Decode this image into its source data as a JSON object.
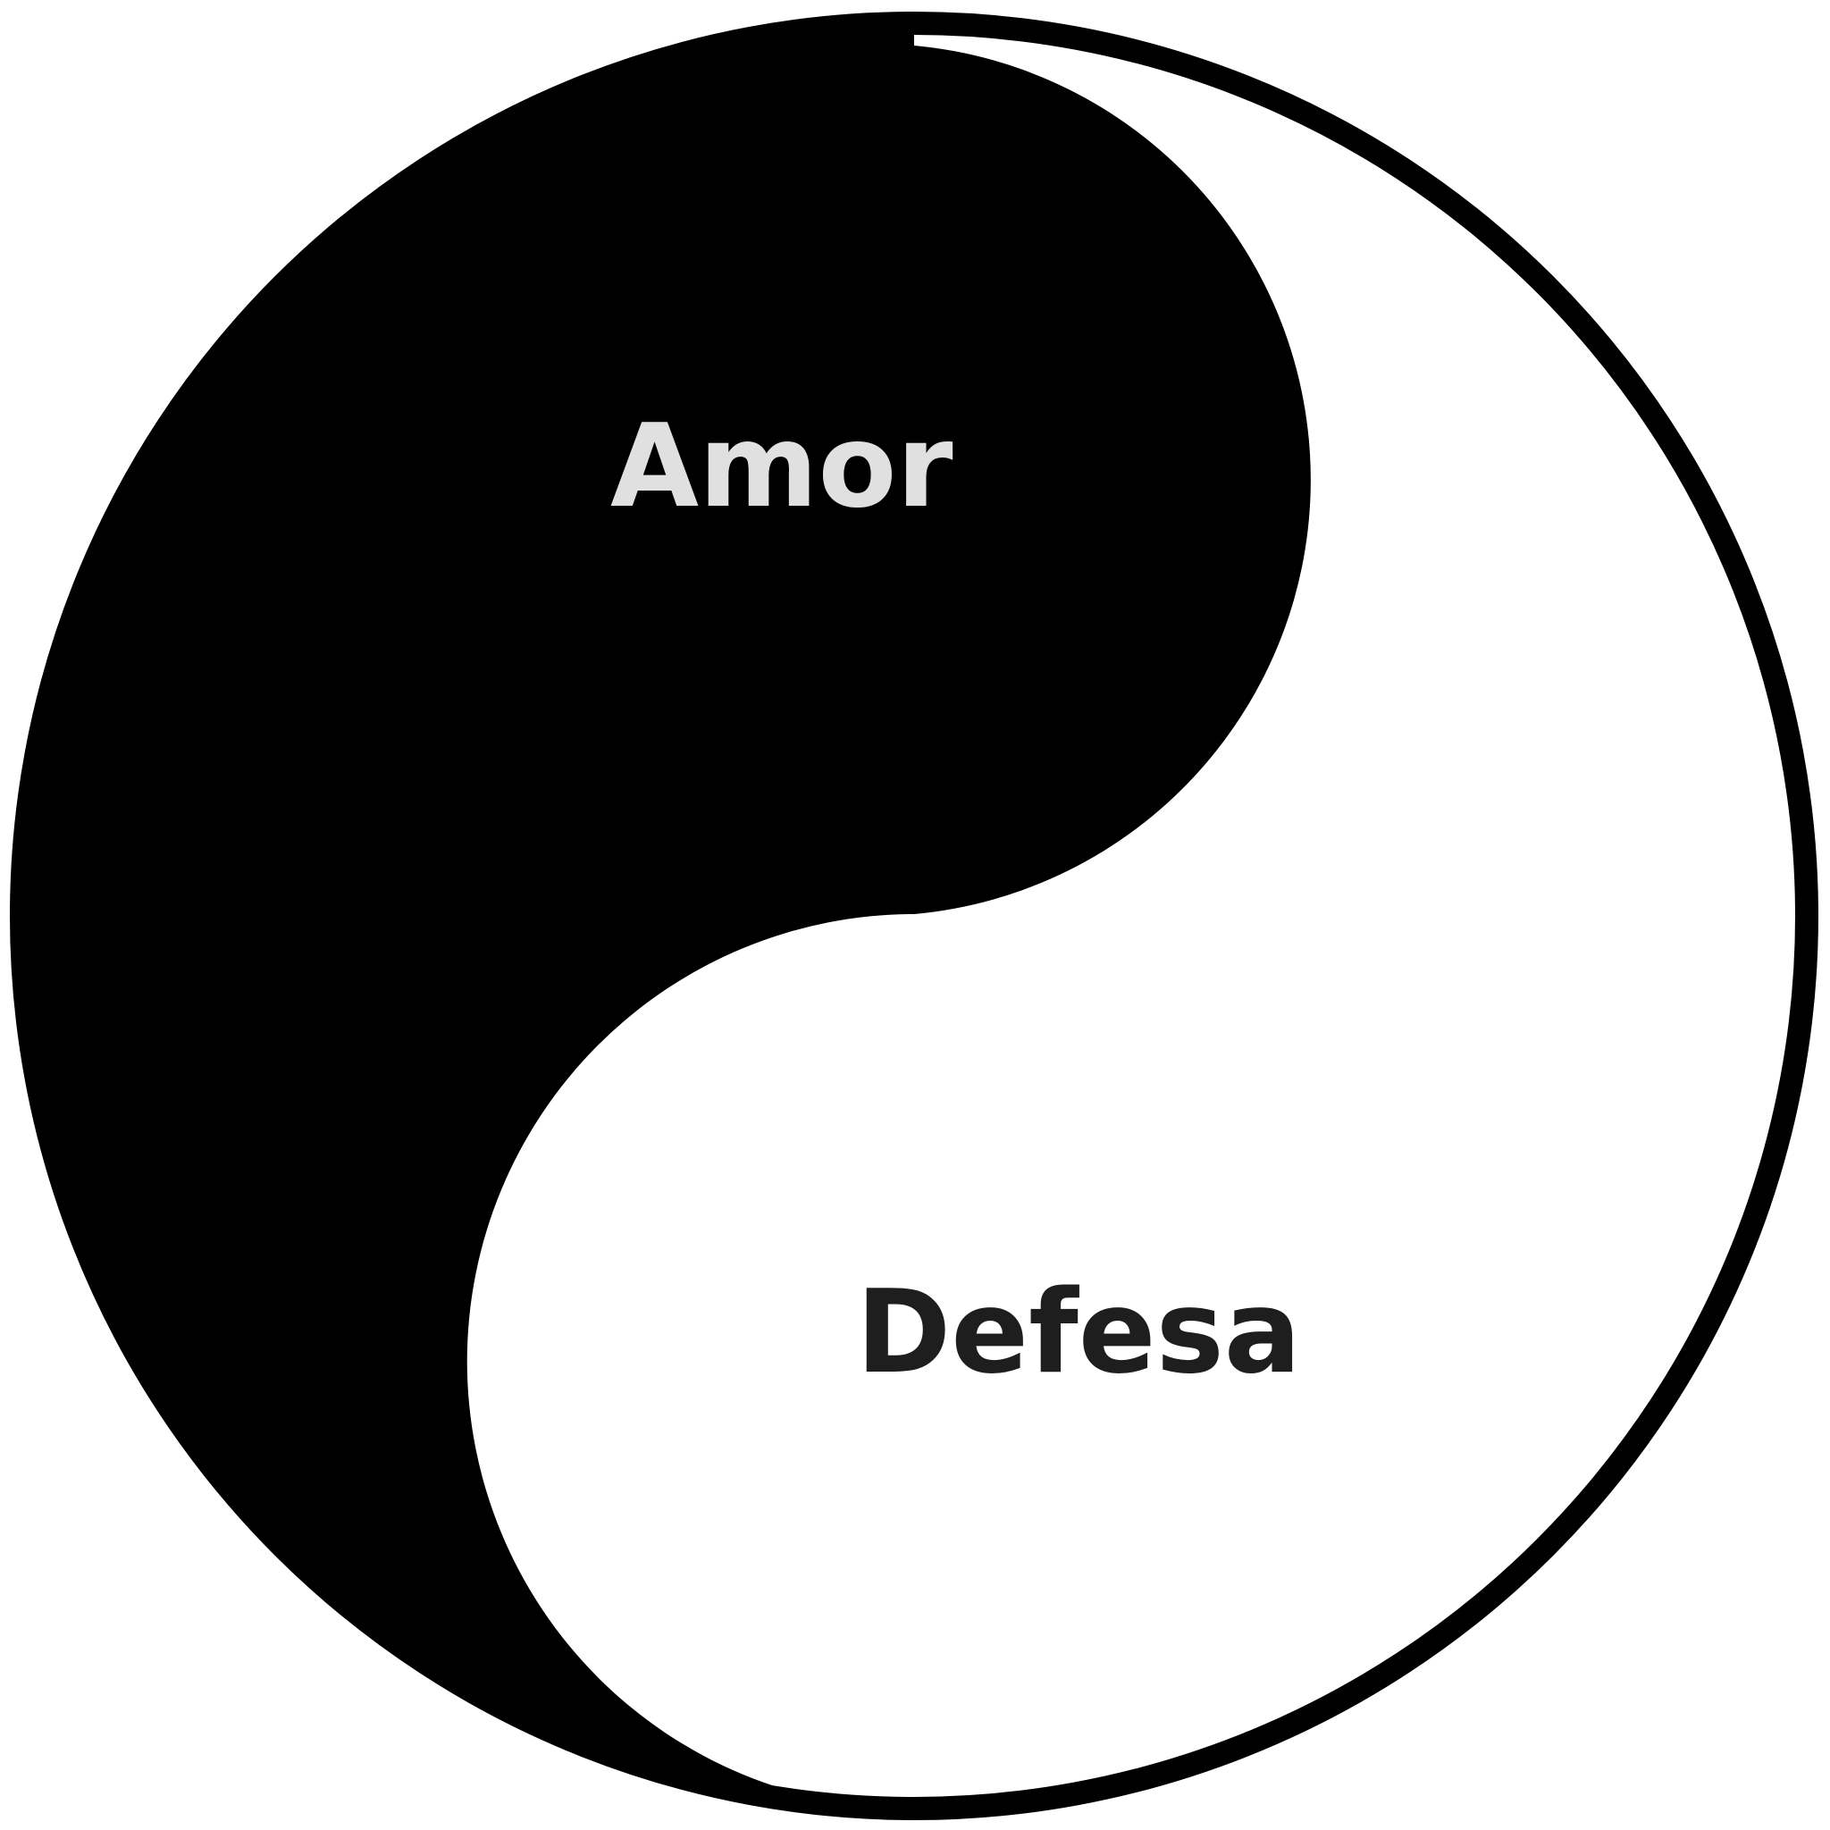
{
  "diagram": {
    "labels": {
      "top": "Amor",
      "bottom": "Defesa"
    },
    "colors": {
      "dark_region": "#000000",
      "light_region": "#ffffff",
      "outline": "#000000",
      "top_label": "#e0e0e0",
      "bottom_label": "#1e1e1e"
    }
  }
}
